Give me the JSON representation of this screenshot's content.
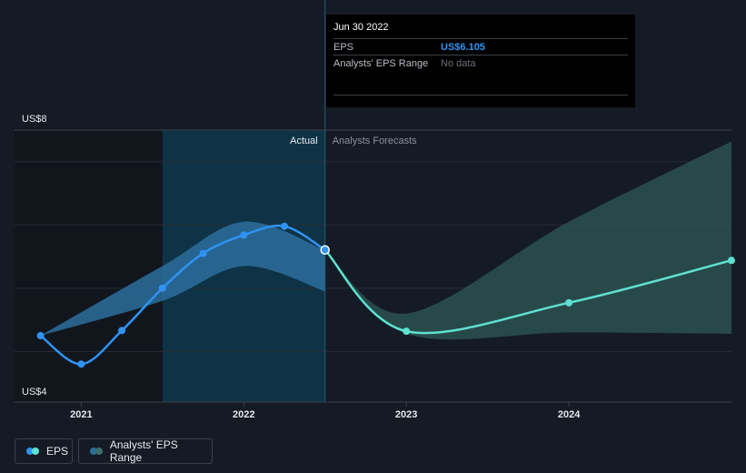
{
  "tooltip": {
    "date": "Jun 30 2022",
    "rows": [
      {
        "label": "EPS",
        "value": "US$6.105"
      },
      {
        "label": "Analysts' EPS Range",
        "value": "No data"
      }
    ]
  },
  "legend": {
    "eps": "EPS",
    "range": "Analysts' EPS Range"
  },
  "colors": {
    "background": "#151b24",
    "actual_line": "#2f93f2",
    "forecast_line": "#5fe0d0",
    "actual_range": "#2b6e9e",
    "forecast_range": "#2f5a56",
    "highlight": "#0e3346"
  },
  "chart_data": {
    "type": "line",
    "xlabel": "",
    "ylabel": "",
    "y_tick_labels": [
      {
        "value": 8,
        "label": "US$8"
      },
      {
        "value": 4,
        "label": "US$4"
      }
    ],
    "x_tick_labels": [
      {
        "value": 2021.0,
        "label": "2021"
      },
      {
        "value": 2022.0,
        "label": "2022"
      },
      {
        "value": 2023.0,
        "label": "2023"
      },
      {
        "value": 2024.0,
        "label": "2024"
      }
    ],
    "xlim": [
      2020.59,
      2025.0
    ],
    "ylim": [
      4,
      8
    ],
    "grid": true,
    "region_labels": {
      "actual": "Actual",
      "forecast": "Analysts Forecasts"
    },
    "divider_x": 2022.5,
    "highlight_range": [
      2021.5,
      2022.5
    ],
    "series": [
      {
        "name": "EPS",
        "kind": "actual",
        "x": [
          2020.75,
          2021.0,
          2021.25,
          2021.5,
          2021.75,
          2022.0,
          2022.25,
          2022.5
        ],
        "y": [
          4.75,
          4.3,
          4.83,
          5.5,
          6.05,
          6.34,
          6.48,
          6.105
        ]
      },
      {
        "name": "EPS",
        "kind": "forecast",
        "x": [
          2022.5,
          2023.0,
          2024.0,
          2025.0
        ],
        "y": [
          6.105,
          4.82,
          5.27,
          5.94
        ]
      }
    ],
    "ranges": [
      {
        "name": "Analysts' EPS Range",
        "kind": "actual",
        "x": [
          2020.75,
          2021.5,
          2022.0,
          2022.5
        ],
        "low": [
          4.75,
          5.3,
          5.85,
          5.45
        ],
        "high": [
          4.75,
          5.85,
          6.55,
          6.1
        ]
      },
      {
        "name": "Analysts' EPS Range",
        "kind": "forecast",
        "x": [
          2022.5,
          2023.0,
          2024.0,
          2025.0
        ],
        "low": [
          6.105,
          4.78,
          4.8,
          4.78
        ],
        "high": [
          6.105,
          5.1,
          6.55,
          7.82
        ]
      }
    ]
  }
}
